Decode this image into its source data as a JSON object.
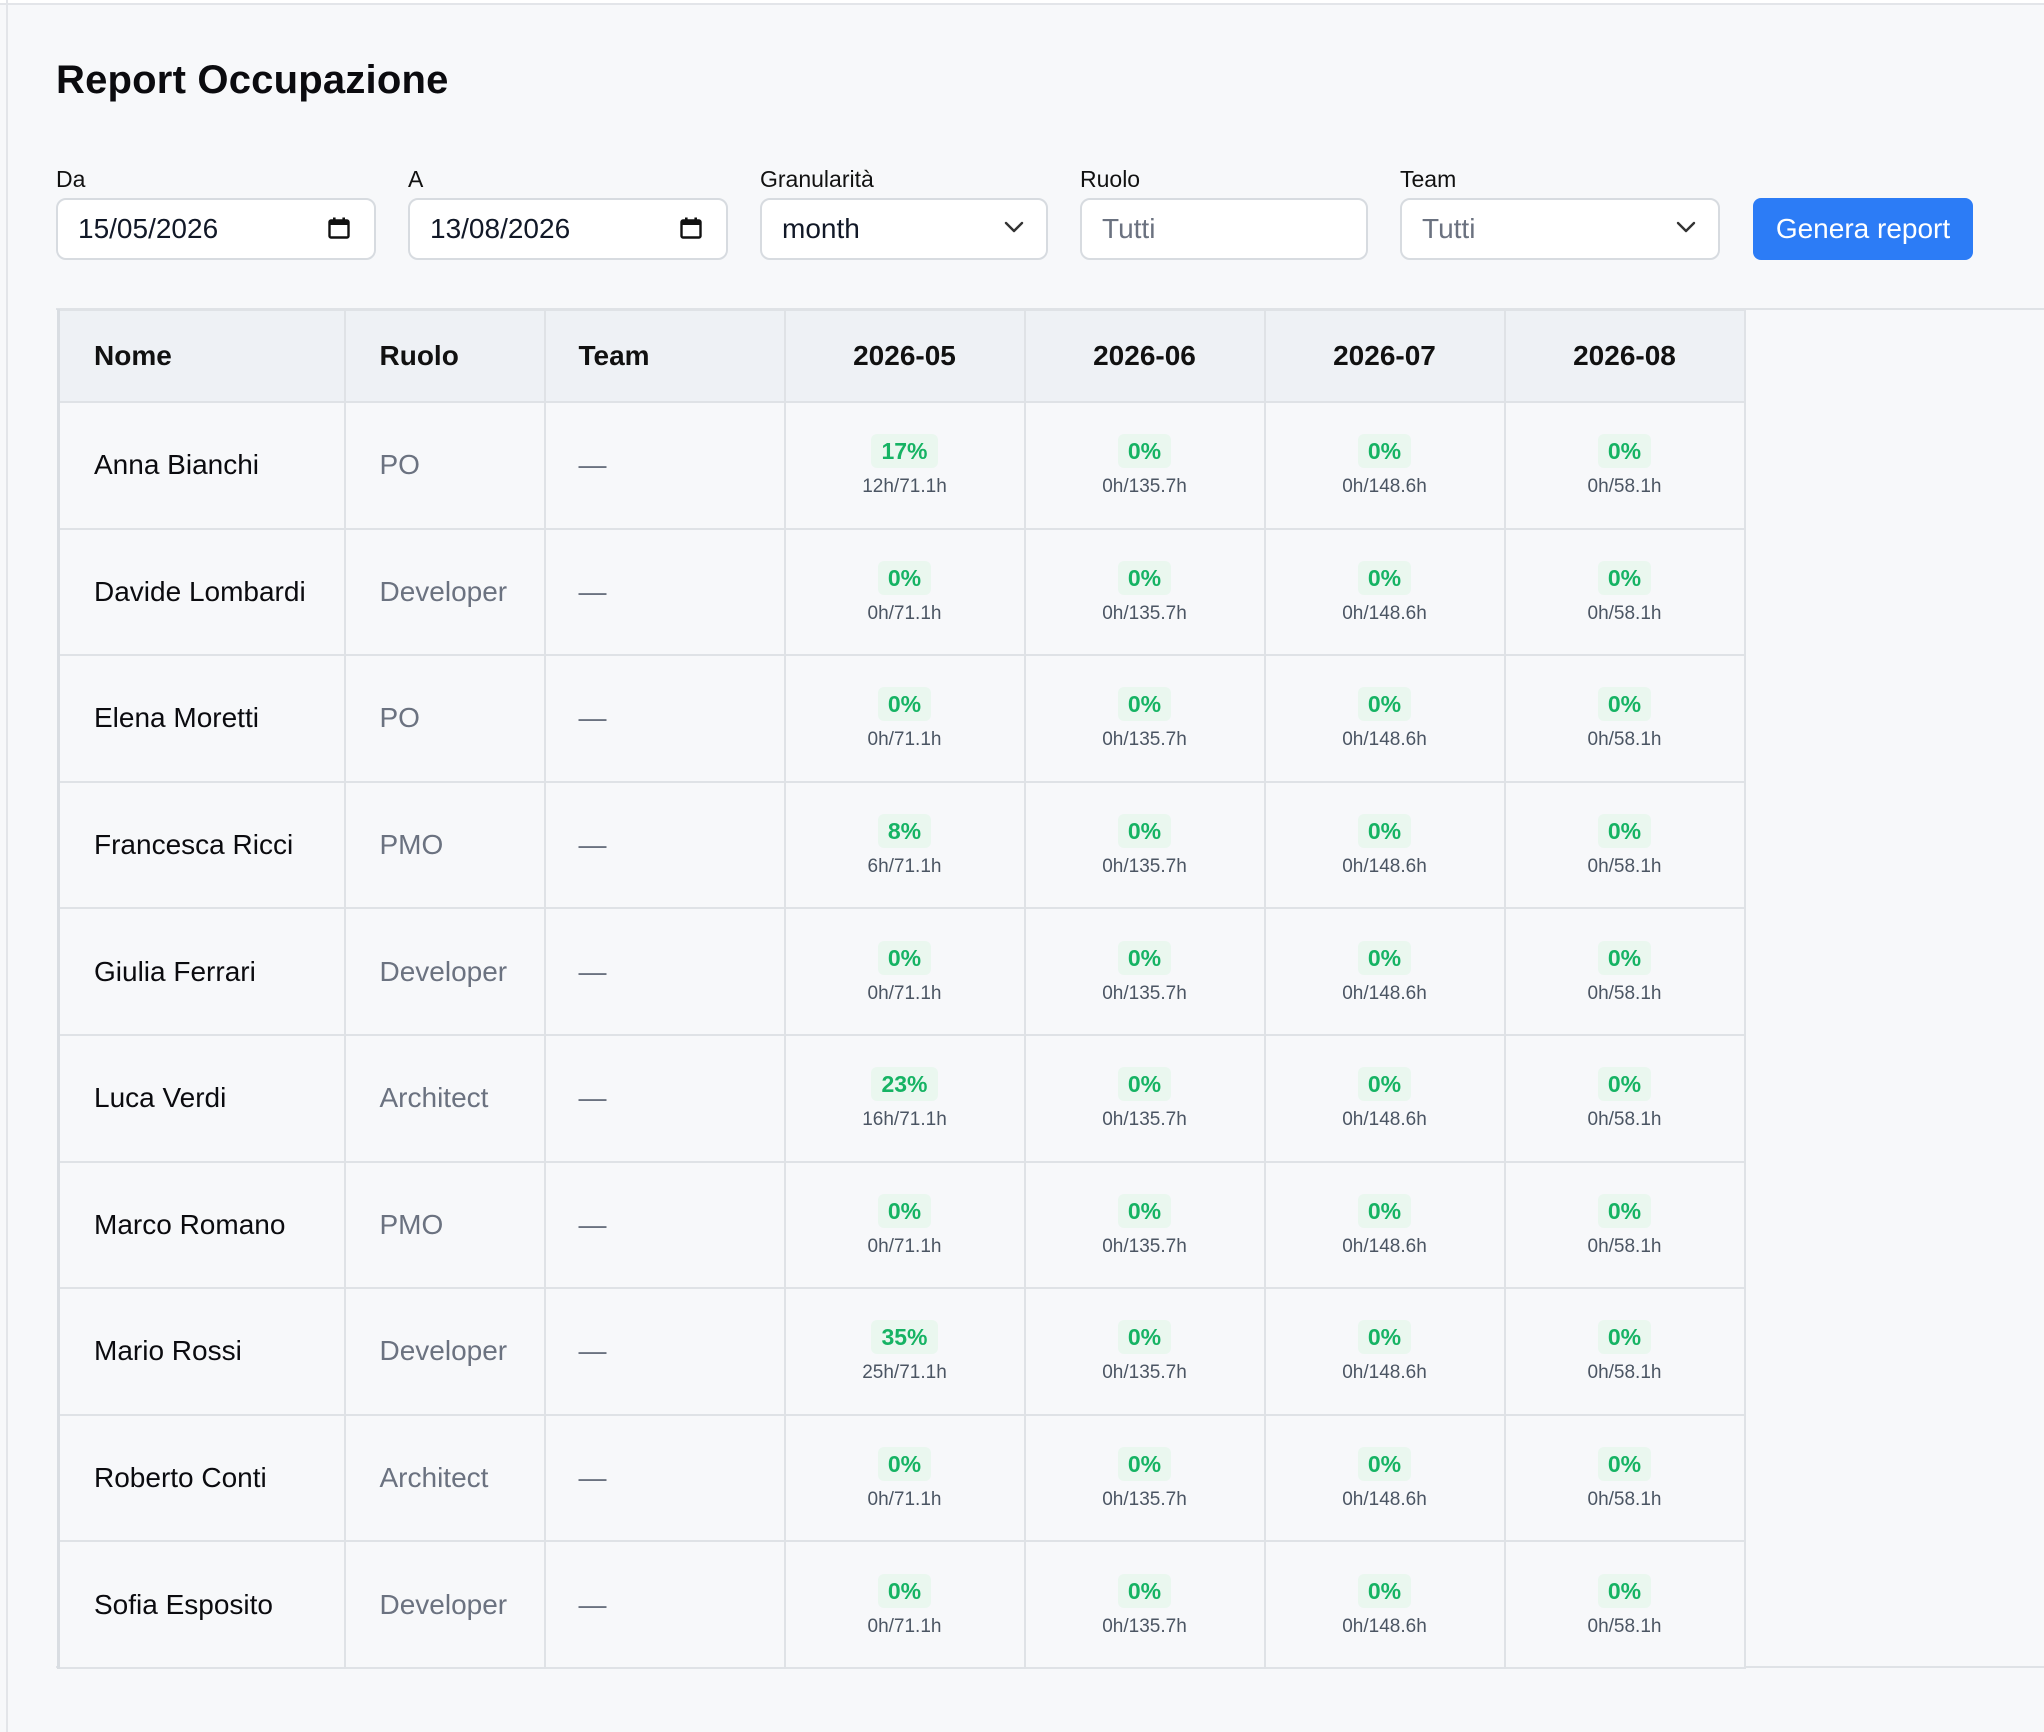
{
  "page": {
    "title": "Report Occupazione"
  },
  "filters": {
    "da": {
      "label": "Da",
      "value": "15/05/2026"
    },
    "a": {
      "label": "A",
      "value": "13/08/2026"
    },
    "granularita": {
      "label": "Granularità",
      "value": "month"
    },
    "ruolo": {
      "label": "Ruolo",
      "placeholder": "Tutti"
    },
    "team": {
      "label": "Team",
      "value": "Tutti"
    },
    "generate_label": "Genera report"
  },
  "table": {
    "headers": {
      "nome": "Nome",
      "ruolo": "Ruolo",
      "team": "Team",
      "periods": [
        "2026-05",
        "2026-06",
        "2026-07",
        "2026-08"
      ]
    },
    "rows": [
      {
        "name": "Anna Bianchi",
        "role": "PO",
        "team": "—",
        "cells": [
          {
            "pct": "17%",
            "hours": "12h/71.1h"
          },
          {
            "pct": "0%",
            "hours": "0h/135.7h"
          },
          {
            "pct": "0%",
            "hours": "0h/148.6h"
          },
          {
            "pct": "0%",
            "hours": "0h/58.1h"
          }
        ]
      },
      {
        "name": "Davide Lombardi",
        "role": "Developer",
        "team": "—",
        "cells": [
          {
            "pct": "0%",
            "hours": "0h/71.1h"
          },
          {
            "pct": "0%",
            "hours": "0h/135.7h"
          },
          {
            "pct": "0%",
            "hours": "0h/148.6h"
          },
          {
            "pct": "0%",
            "hours": "0h/58.1h"
          }
        ]
      },
      {
        "name": "Elena Moretti",
        "role": "PO",
        "team": "—",
        "cells": [
          {
            "pct": "0%",
            "hours": "0h/71.1h"
          },
          {
            "pct": "0%",
            "hours": "0h/135.7h"
          },
          {
            "pct": "0%",
            "hours": "0h/148.6h"
          },
          {
            "pct": "0%",
            "hours": "0h/58.1h"
          }
        ]
      },
      {
        "name": "Francesca Ricci",
        "role": "PMO",
        "team": "—",
        "cells": [
          {
            "pct": "8%",
            "hours": "6h/71.1h"
          },
          {
            "pct": "0%",
            "hours": "0h/135.7h"
          },
          {
            "pct": "0%",
            "hours": "0h/148.6h"
          },
          {
            "pct": "0%",
            "hours": "0h/58.1h"
          }
        ]
      },
      {
        "name": "Giulia Ferrari",
        "role": "Developer",
        "team": "—",
        "cells": [
          {
            "pct": "0%",
            "hours": "0h/71.1h"
          },
          {
            "pct": "0%",
            "hours": "0h/135.7h"
          },
          {
            "pct": "0%",
            "hours": "0h/148.6h"
          },
          {
            "pct": "0%",
            "hours": "0h/58.1h"
          }
        ]
      },
      {
        "name": "Luca Verdi",
        "role": "Architect",
        "team": "—",
        "cells": [
          {
            "pct": "23%",
            "hours": "16h/71.1h"
          },
          {
            "pct": "0%",
            "hours": "0h/135.7h"
          },
          {
            "pct": "0%",
            "hours": "0h/148.6h"
          },
          {
            "pct": "0%",
            "hours": "0h/58.1h"
          }
        ]
      },
      {
        "name": "Marco Romano",
        "role": "PMO",
        "team": "—",
        "cells": [
          {
            "pct": "0%",
            "hours": "0h/71.1h"
          },
          {
            "pct": "0%",
            "hours": "0h/135.7h"
          },
          {
            "pct": "0%",
            "hours": "0h/148.6h"
          },
          {
            "pct": "0%",
            "hours": "0h/58.1h"
          }
        ]
      },
      {
        "name": "Mario Rossi",
        "role": "Developer",
        "team": "—",
        "cells": [
          {
            "pct": "35%",
            "hours": "25h/71.1h"
          },
          {
            "pct": "0%",
            "hours": "0h/135.7h"
          },
          {
            "pct": "0%",
            "hours": "0h/148.6h"
          },
          {
            "pct": "0%",
            "hours": "0h/58.1h"
          }
        ]
      },
      {
        "name": "Roberto Conti",
        "role": "Architect",
        "team": "—",
        "cells": [
          {
            "pct": "0%",
            "hours": "0h/71.1h"
          },
          {
            "pct": "0%",
            "hours": "0h/135.7h"
          },
          {
            "pct": "0%",
            "hours": "0h/148.6h"
          },
          {
            "pct": "0%",
            "hours": "0h/58.1h"
          }
        ]
      },
      {
        "name": "Sofia Esposito",
        "role": "Developer",
        "team": "—",
        "cells": [
          {
            "pct": "0%",
            "hours": "0h/71.1h"
          },
          {
            "pct": "0%",
            "hours": "0h/135.7h"
          },
          {
            "pct": "0%",
            "hours": "0h/148.6h"
          },
          {
            "pct": "0%",
            "hours": "0h/58.1h"
          }
        ]
      }
    ]
  },
  "icons": {
    "date_picker": "calendar-icon",
    "select": "chevron-down-icon"
  },
  "colors": {
    "accent": "#2c7cf6",
    "success": "#16b364",
    "success_bg": "#eaf7ef",
    "header_bg": "#eef1f5"
  }
}
